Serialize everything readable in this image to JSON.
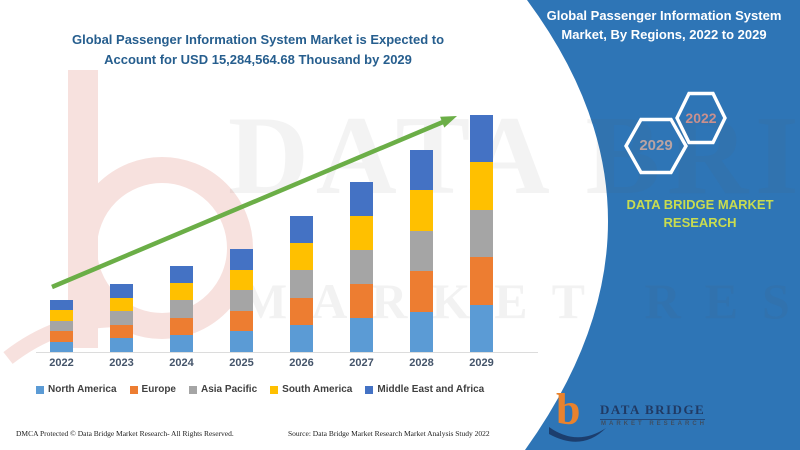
{
  "header": {
    "left_title_line1": "Global Passenger Information System Market is Expected to",
    "left_title_line2": "Account for USD 15,284,564.68 Thousand by 2029",
    "right_title_line1": "Global Passenger Information System",
    "right_title_line2": "Market, By Regions, 2022 to 2029"
  },
  "side_panel": {
    "panel_color": "#2E75B6",
    "badges": [
      {
        "label": "2029"
      },
      {
        "label": "2022"
      }
    ],
    "brand_line1": "DATA BRIDGE MARKET",
    "brand_line2": "RESEARCH",
    "logo": {
      "glyph": "b",
      "name": "DATA BRIDGE",
      "subtitle": "MARKET RESEARCH"
    }
  },
  "chart_data": {
    "type": "bar",
    "stacked": true,
    "title": "Global Passenger Information System Market is Expected to Account for USD 15,284,564.68 Thousand by 2029",
    "xlabel": "",
    "ylabel": "",
    "y_axis_visible": false,
    "unit": "relative height (no value axis shown in figure)",
    "legend_position": "bottom",
    "grid": false,
    "categories": [
      "2022",
      "2023",
      "2024",
      "2025",
      "2026",
      "2027",
      "2028",
      "2029"
    ],
    "series": [
      {
        "name": "North America",
        "color": "#5B9BD5",
        "values": [
          10.4,
          13.6,
          17.2,
          20.6,
          27.2,
          34.0,
          40.4,
          47.4
        ]
      },
      {
        "name": "Europe",
        "color": "#ED7D31",
        "values": [
          10.4,
          13.6,
          17.2,
          20.6,
          27.2,
          34.0,
          40.4,
          47.4
        ]
      },
      {
        "name": "Asia Pacific",
        "color": "#A5A5A5",
        "values": [
          10.4,
          13.6,
          17.2,
          20.6,
          27.2,
          34.0,
          40.4,
          47.4
        ]
      },
      {
        "name": "South America",
        "color": "#FFC000",
        "values": [
          10.4,
          13.6,
          17.2,
          20.6,
          27.2,
          34.0,
          40.4,
          47.4
        ]
      },
      {
        "name": "Middle East and Africa",
        "color": "#4472C4",
        "values": [
          10.4,
          13.6,
          17.2,
          20.6,
          27.2,
          34.0,
          40.4,
          47.4
        ]
      }
    ],
    "totals": [
      52,
      68,
      86,
      103,
      136,
      170,
      202,
      237
    ],
    "trend_arrow": true,
    "trend_arrow_color": "#6BAE47"
  },
  "watermark": {
    "line1": "DATA BRIDGE",
    "line2": "MARKET RESEARCH"
  },
  "footer": {
    "left": "DMCA Protected © Data Bridge Market Research- All Rights Reserved.",
    "right": "Source: Data Bridge Market Research Market Analysis Study 2022"
  }
}
